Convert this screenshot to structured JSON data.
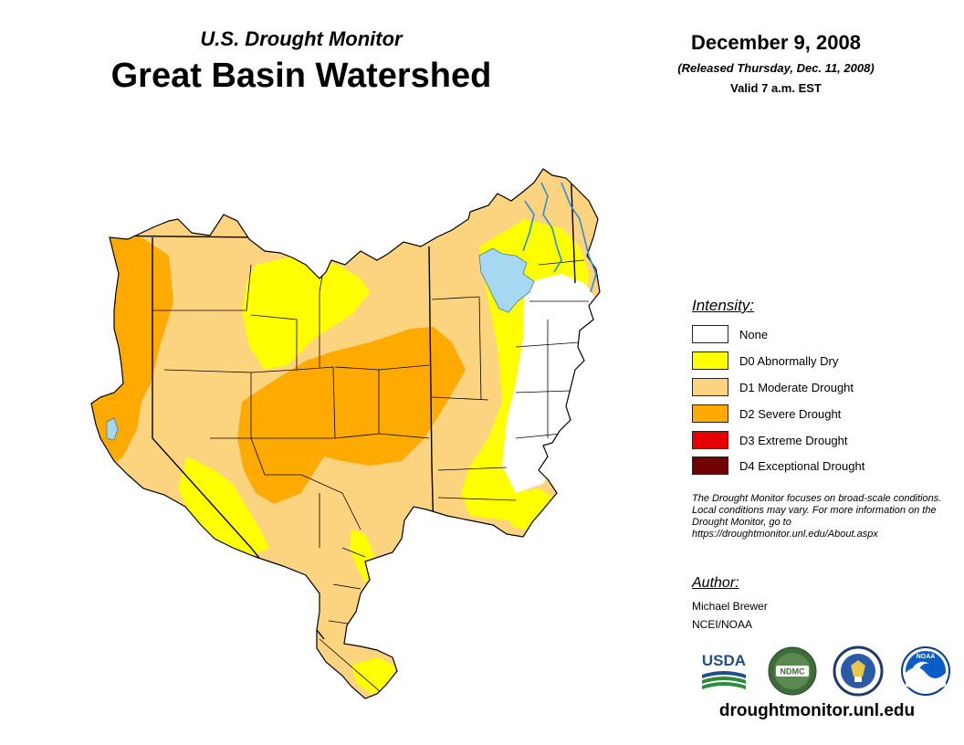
{
  "header": {
    "subtitle": "U.S. Drought Monitor",
    "title": "Great Basin Watershed",
    "date": "December 9, 2008",
    "released": "(Released Thursday, Dec. 11, 2008)",
    "valid": "Valid 7 a.m. EST"
  },
  "legend": {
    "heading": "Intensity:",
    "items": [
      {
        "label": "None",
        "color": "#ffffff"
      },
      {
        "label": "D0 Abnormally Dry",
        "color": "#ffff00"
      },
      {
        "label": "D1 Moderate Drought",
        "color": "#fcd37f"
      },
      {
        "label": "D2 Severe Drought",
        "color": "#ffaa00"
      },
      {
        "label": "D3 Extreme Drought",
        "color": "#e60000"
      },
      {
        "label": "D4 Exceptional Drought",
        "color": "#730000"
      }
    ]
  },
  "note": "The Drought Monitor focuses on broad-scale conditions. Local conditions may vary. For more information on the Drought Monitor, go to https://droughtmonitor.unl.edu/About.aspx",
  "author": {
    "heading": "Author:",
    "name": "Michael Brewer",
    "org": "NCEI/NOAA"
  },
  "logos": {
    "usda": "USDA",
    "ndmc": "NDMC",
    "noaa": "NOAA"
  },
  "colors": {
    "water": "#a7d8f2",
    "river": "#2b8ce0",
    "border": "#000000"
  },
  "footer": {
    "website": "droughtmonitor.unl.edu"
  }
}
